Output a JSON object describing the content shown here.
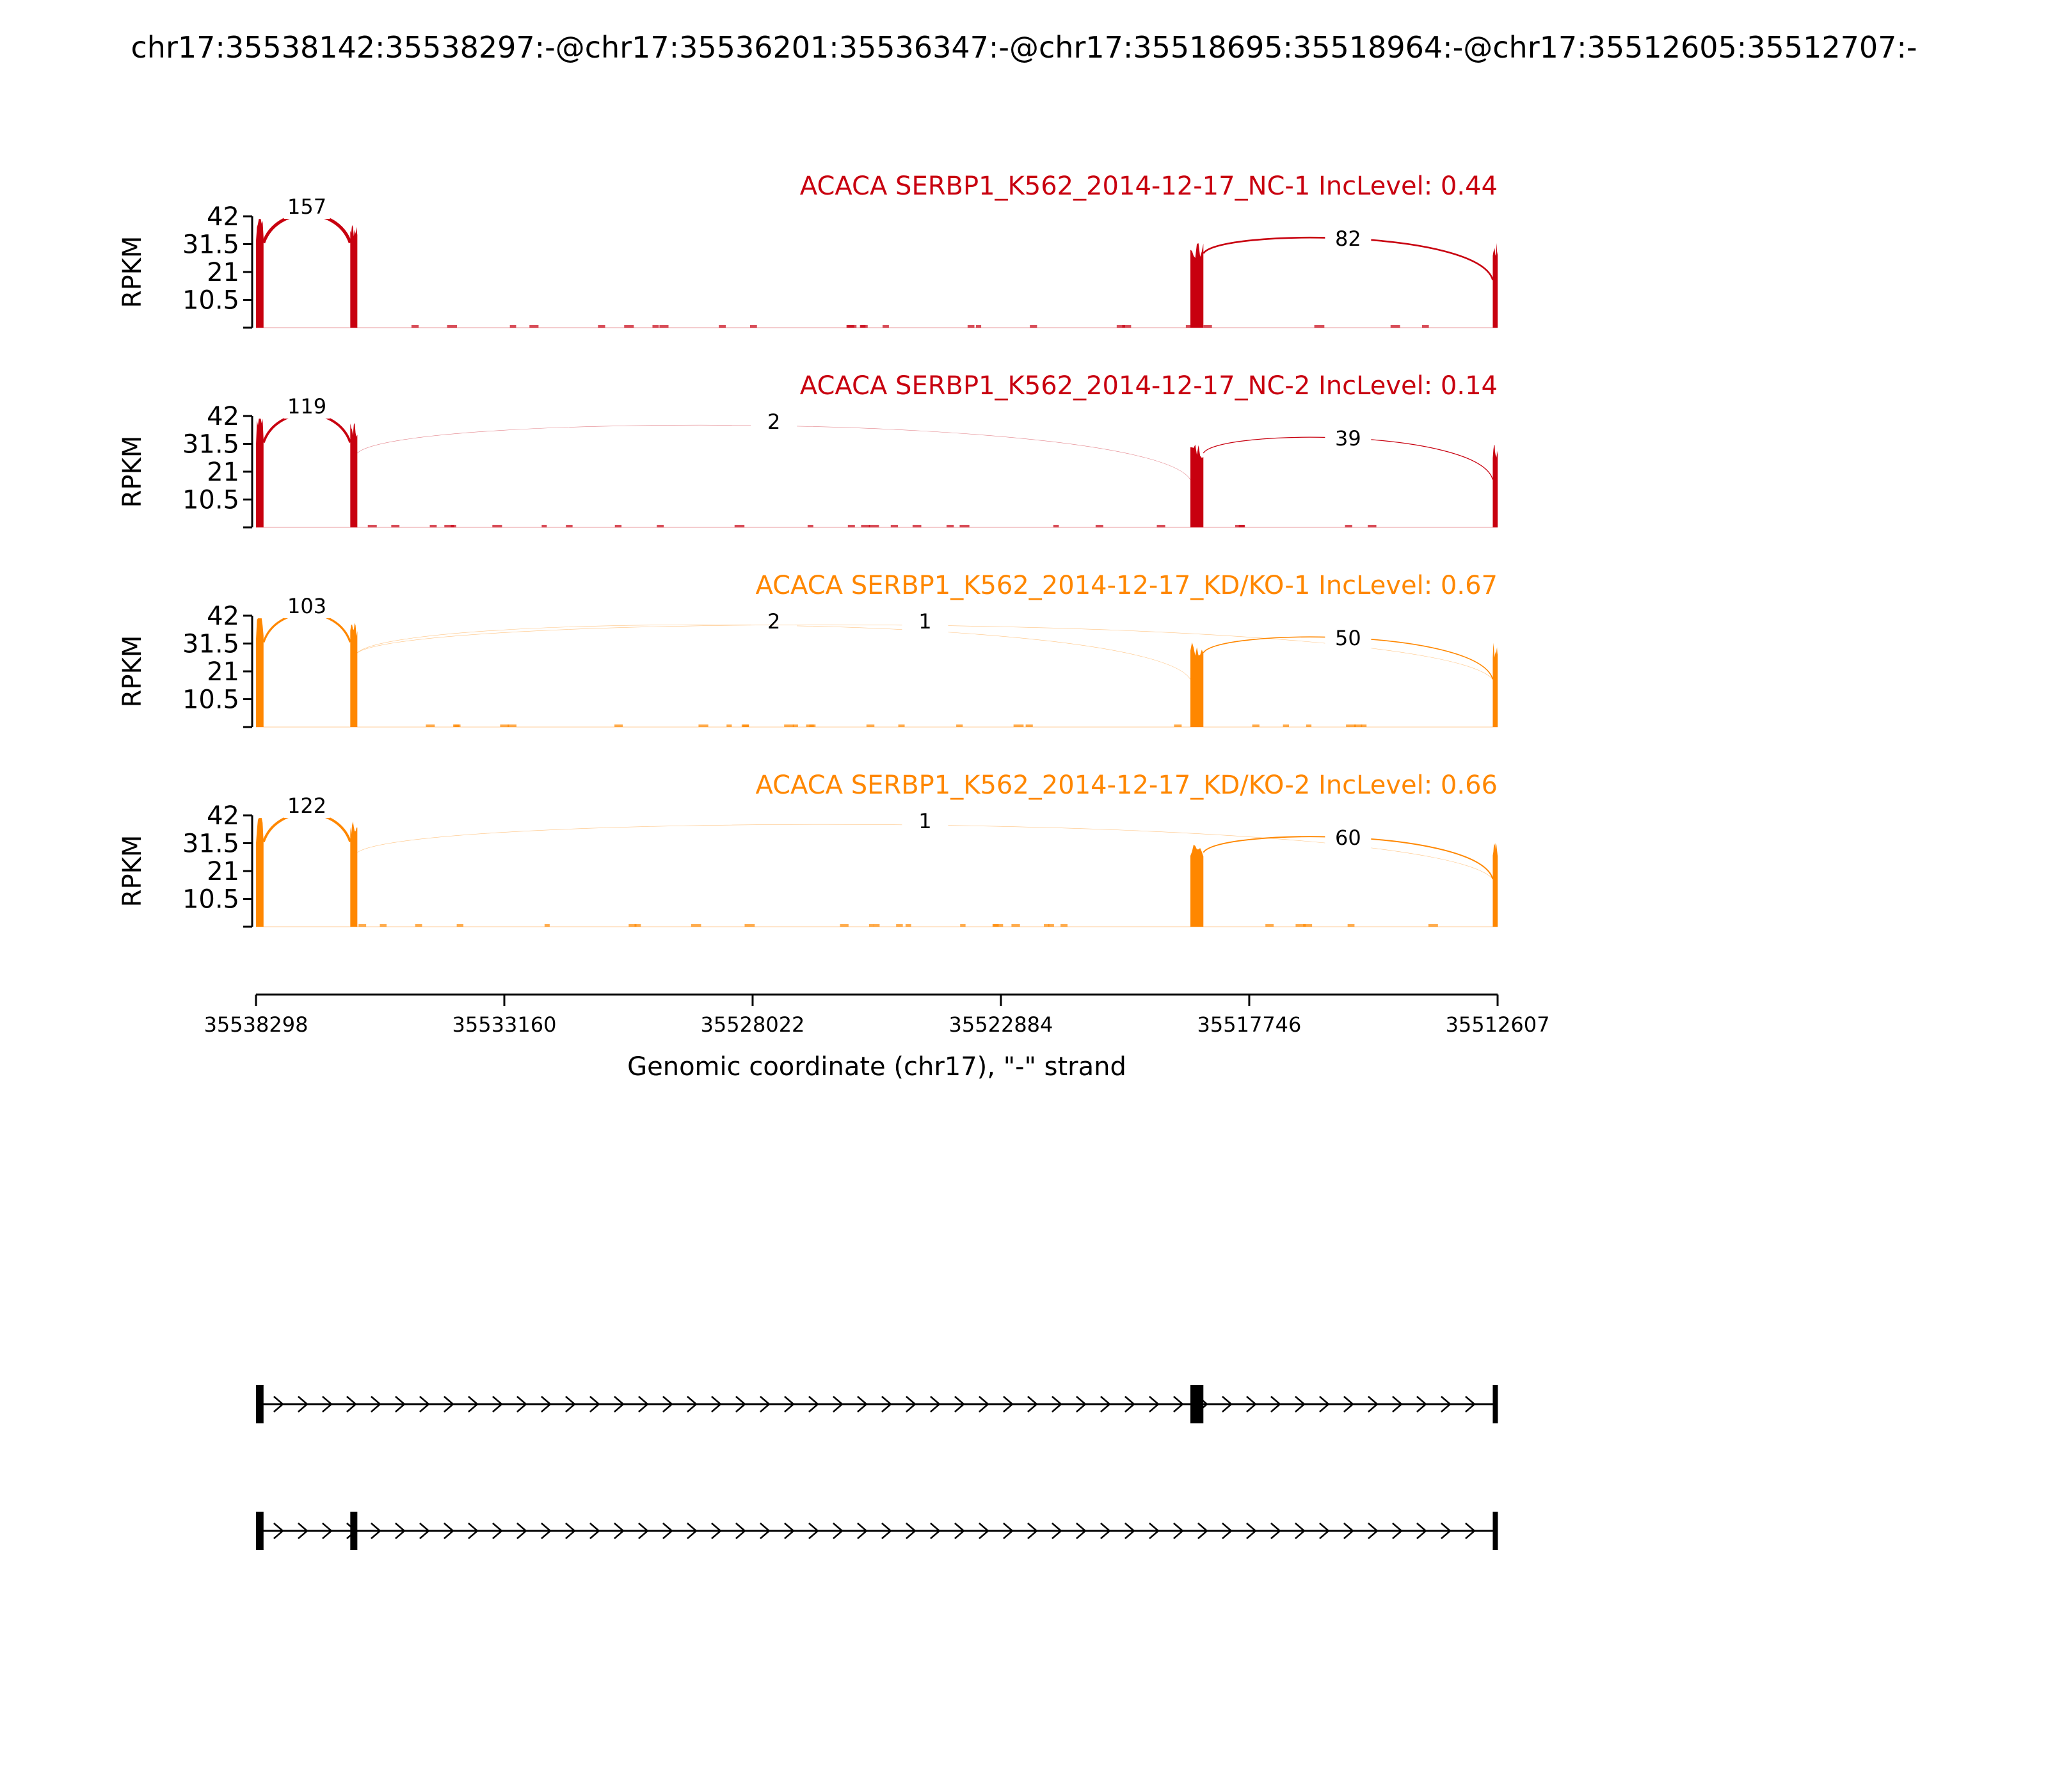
{
  "chart_data": {
    "type": "area",
    "title": "chr17:35538142:35538297:-@chr17:35536201:35536347:-@chr17:35518695:35518964:-@chr17:35512605:35512707:-",
    "xlabel": "Genomic coordinate (chr17), \"-\" strand",
    "ylabel": "RPKM",
    "ylim": [
      0,
      42
    ],
    "yticks": [
      "10.5",
      "21",
      "31.5",
      "42"
    ],
    "yticks_values": [
      10.5,
      21,
      31.5,
      42
    ],
    "xlim": [
      35538298,
      35512607
    ],
    "xticks": [
      "35538298",
      "35533160",
      "35528022",
      "35522884",
      "35517746",
      "35512607"
    ],
    "xticks_values": [
      35538298,
      35533160,
      35528022,
      35522884,
      35517746,
      35512607
    ],
    "exons": [
      {
        "start": 35538297,
        "end": 35538142
      },
      {
        "start": 35536347,
        "end": 35536201
      },
      {
        "start": 35518964,
        "end": 35518695
      },
      {
        "start": 35512707,
        "end": 35512605
      }
    ],
    "series": [
      {
        "name": "ACACA SERBP1_K562_2014-12-17_NC-1 IncLevel: 0.44",
        "color": "#c8000f",
        "junctions": [
          {
            "from": 35538142,
            "to": 35536347,
            "count": "157"
          },
          {
            "from": 35518695,
            "to": 35512707,
            "count": "82"
          }
        ]
      },
      {
        "name": "ACACA SERBP1_K562_2014-12-17_NC-2 IncLevel: 0.14",
        "color": "#c8000f",
        "junctions": [
          {
            "from": 35538142,
            "to": 35536347,
            "count": "119"
          },
          {
            "from": 35536201,
            "to": 35518964,
            "count": "2"
          },
          {
            "from": 35518695,
            "to": 35512707,
            "count": "39"
          }
        ]
      },
      {
        "name": "ACACA SERBP1_K562_2014-12-17_KD/KO-1 IncLevel: 0.67",
        "color": "#ff8700",
        "junctions": [
          {
            "from": 35538142,
            "to": 35536347,
            "count": "103"
          },
          {
            "from": 35536201,
            "to": 35518964,
            "count": "2"
          },
          {
            "from": 35536201,
            "to": 35512707,
            "count": "1"
          },
          {
            "from": 35518695,
            "to": 35512707,
            "count": "50"
          }
        ]
      },
      {
        "name": "ACACA SERBP1_K562_2014-12-17_KD/KO-2 IncLevel: 0.66",
        "color": "#ff8700",
        "junctions": [
          {
            "from": 35538142,
            "to": 35536347,
            "count": "122"
          },
          {
            "from": 35536201,
            "to": 35512707,
            "count": "1"
          },
          {
            "from": 35518695,
            "to": 35512707,
            "count": "60"
          }
        ]
      }
    ],
    "isoforms": [
      {
        "exons": [
          0,
          2,
          3
        ]
      },
      {
        "exons": [
          0,
          1,
          3
        ]
      }
    ]
  }
}
